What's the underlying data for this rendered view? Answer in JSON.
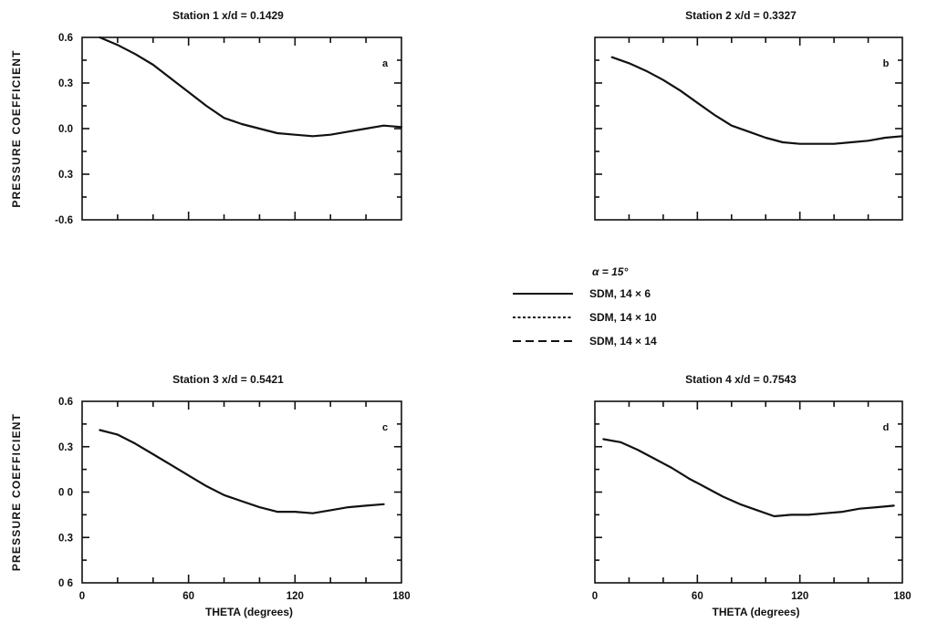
{
  "chart_data": [
    {
      "type": "line",
      "panel_label": "a",
      "title": "Station 1 x/d  =  0.1429",
      "xlabel": "",
      "ylabel": "PRESSURE COEFFICIENT",
      "xlim": [
        0,
        180
      ],
      "ylim": [
        -0.6,
        0.6
      ],
      "x_ticklabels": [],
      "y_ticklabels": [
        "0.6",
        "0.3",
        "0.0",
        "0.3",
        "-0.6"
      ],
      "series": [
        {
          "values_x": [
            10,
            20,
            30,
            40,
            50,
            60,
            70,
            80,
            90,
            100,
            110,
            120,
            130,
            140,
            150,
            160,
            170,
            180
          ],
          "values_y": [
            0.6,
            0.55,
            0.49,
            0.42,
            0.33,
            0.24,
            0.15,
            0.07,
            0.03,
            0.0,
            -0.03,
            -0.04,
            -0.05,
            -0.04,
            -0.02,
            0.0,
            0.02,
            0.01
          ]
        }
      ]
    },
    {
      "type": "line",
      "panel_label": "b",
      "title": "Station 2 x/d  =  0.3327",
      "xlabel": "",
      "ylabel": "",
      "xlim": [
        0,
        180
      ],
      "ylim": [
        -0.6,
        0.6
      ],
      "x_ticklabels": [],
      "y_ticklabels": [],
      "series": [
        {
          "values_x": [
            10,
            20,
            30,
            40,
            50,
            60,
            70,
            80,
            90,
            100,
            110,
            120,
            130,
            140,
            150,
            160,
            170,
            180
          ],
          "values_y": [
            0.47,
            0.43,
            0.38,
            0.32,
            0.25,
            0.17,
            0.09,
            0.02,
            -0.02,
            -0.06,
            -0.09,
            -0.1,
            -0.1,
            -0.1,
            -0.09,
            -0.08,
            -0.06,
            -0.05
          ]
        }
      ]
    },
    {
      "type": "line",
      "panel_label": "c",
      "title": "Station 3 x/d  =  0.5421",
      "xlabel": "THETA (degrees)",
      "ylabel": "PRESSURE COEFFICIENT",
      "xlim": [
        0,
        180
      ],
      "ylim": [
        -0.6,
        0.6
      ],
      "x_ticklabels": [
        "0",
        "60",
        "120",
        "180"
      ],
      "y_ticklabels": [
        "0.6",
        "0.3",
        "0 0",
        "0.3",
        "0 6"
      ],
      "series": [
        {
          "values_x": [
            10,
            20,
            30,
            40,
            50,
            60,
            70,
            80,
            90,
            100,
            110,
            120,
            130,
            140,
            150,
            160,
            170
          ],
          "values_y": [
            0.41,
            0.38,
            0.32,
            0.25,
            0.18,
            0.11,
            0.04,
            -0.02,
            -0.06,
            -0.1,
            -0.13,
            -0.13,
            -0.14,
            -0.12,
            -0.1,
            -0.09,
            -0.08
          ]
        }
      ]
    },
    {
      "type": "line",
      "panel_label": "d",
      "title": "Station 4 x/d  =  0.7543",
      "xlabel": "THETA (degrees)",
      "ylabel": "",
      "xlim": [
        0,
        180
      ],
      "ylim": [
        -0.6,
        0.6
      ],
      "x_ticklabels": [
        "0",
        "60",
        "120",
        "180"
      ],
      "y_ticklabels": [],
      "series": [
        {
          "values_x": [
            5,
            15,
            25,
            35,
            45,
            55,
            65,
            75,
            85,
            95,
            105,
            115,
            125,
            135,
            145,
            155,
            165,
            175
          ],
          "values_y": [
            0.35,
            0.33,
            0.28,
            0.22,
            0.16,
            0.09,
            0.03,
            -0.03,
            -0.08,
            -0.12,
            -0.16,
            -0.15,
            -0.15,
            -0.14,
            -0.13,
            -0.11,
            -0.1,
            -0.09
          ]
        }
      ]
    }
  ],
  "legend": {
    "header": "α  =  15°",
    "items": [
      {
        "label": "SDM, 14 × 6",
        "style": "solid"
      },
      {
        "label": "SDM, 14 × 10",
        "style": "dotted"
      },
      {
        "label": "SDM, 14 × 14",
        "style": "dashed"
      }
    ]
  },
  "colors": {
    "ink": "#111111",
    "background": "#ffffff"
  }
}
